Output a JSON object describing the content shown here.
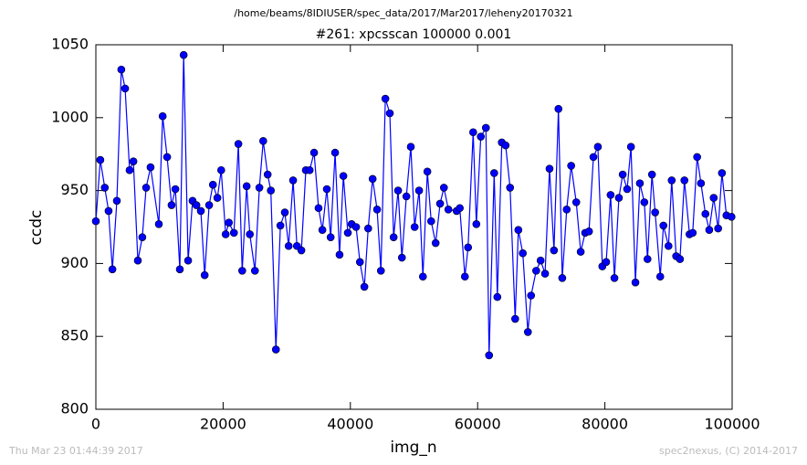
{
  "chart_data": {
    "type": "line",
    "suptitle": "/home/beams/8IDIUSER/spec_data/2017/Mar2017/leheny20170321",
    "title": "#261: xpcsscan 100000 0.001",
    "x_label": "img_n",
    "y_label": "ccdc",
    "xlim": [
      0,
      100000
    ],
    "xticks": [
      0,
      20000,
      40000,
      60000,
      80000,
      100000
    ],
    "ylim": [
      800,
      1050
    ],
    "yticks": [
      800,
      850,
      900,
      950,
      1000,
      1050
    ],
    "grid": false,
    "marker": "circle",
    "x": [
      0,
      700,
      1400,
      2000,
      2600,
      3300,
      4000,
      4600,
      5300,
      5900,
      6600,
      7300,
      7900,
      8600,
      9900,
      10500,
      11200,
      11900,
      12500,
      13200,
      13800,
      14500,
      15200,
      15800,
      16500,
      17100,
      17800,
      18400,
      19100,
      19700,
      20400,
      20900,
      21700,
      22400,
      23000,
      23700,
      24200,
      25000,
      25700,
      26300,
      27000,
      27500,
      28300,
      29000,
      29700,
      30300,
      31000,
      31600,
      32300,
      33000,
      33600,
      34300,
      35000,
      35600,
      36300,
      36900,
      37600,
      38300,
      38900,
      39600,
      40200,
      40900,
      41500,
      42200,
      42800,
      43500,
      44200,
      44800,
      45500,
      46200,
      46800,
      47500,
      48100,
      48800,
      49500,
      50100,
      50800,
      51400,
      52100,
      52700,
      53400,
      54100,
      54700,
      55400,
      56700,
      57200,
      58000,
      58500,
      59300,
      59800,
      60500,
      61300,
      61800,
      62600,
      63100,
      63800,
      64400,
      65100,
      65900,
      66400,
      67100,
      67900,
      68400,
      69200,
      69900,
      70600,
      71300,
      72000,
      72700,
      73300,
      74000,
      74700,
      75500,
      76200,
      76900,
      77500,
      78200,
      78900,
      79600,
      80200,
      80900,
      81500,
      82200,
      82800,
      83500,
      84100,
      84800,
      85500,
      86200,
      86700,
      87400,
      87900,
      88700,
      89200,
      90000,
      90500,
      91200,
      91800,
      92500,
      93300,
      93800,
      94500,
      95100,
      95800,
      96400,
      97100,
      97800,
      98400,
      99100,
      99900
    ],
    "series": [
      {
        "name": "ccdc",
        "color": "#0000ff",
        "values": [
          929,
          971,
          952,
          936,
          896,
          943,
          1033,
          1020,
          964,
          970,
          902,
          918,
          952,
          966,
          927,
          1001,
          973,
          940,
          951,
          896,
          1043,
          902,
          943,
          940,
          936,
          892,
          940,
          954,
          945,
          964,
          920,
          928,
          921,
          982,
          895,
          953,
          920,
          895,
          952,
          984,
          961,
          950,
          841,
          926,
          935,
          912,
          957,
          912,
          909,
          964,
          964,
          976,
          938,
          923,
          951,
          918,
          976,
          906,
          960,
          921,
          927,
          925,
          901,
          884,
          924,
          958,
          937,
          895,
          1013,
          1003,
          918,
          950,
          904,
          946,
          980,
          925,
          950,
          891,
          963,
          929,
          914,
          941,
          952,
          937,
          936,
          938,
          891,
          911,
          990,
          927,
          987,
          993,
          837,
          962,
          877,
          983,
          981,
          952,
          862,
          923,
          907,
          853,
          878,
          895,
          902,
          893,
          965,
          909,
          1006,
          890,
          937,
          967,
          942,
          908,
          921,
          922,
          973,
          980,
          898,
          901,
          947,
          890,
          945,
          961,
          951,
          980,
          887,
          955,
          942,
          903,
          961,
          935,
          891,
          926,
          912,
          957,
          905,
          903,
          957,
          920,
          921,
          973,
          955,
          934,
          923,
          945,
          924,
          962,
          933,
          932
        ]
      }
    ]
  },
  "footer_left": "Thu Mar 23 01:44:39 2017",
  "footer_right": "spec2nexus, (C) 2014-2017"
}
